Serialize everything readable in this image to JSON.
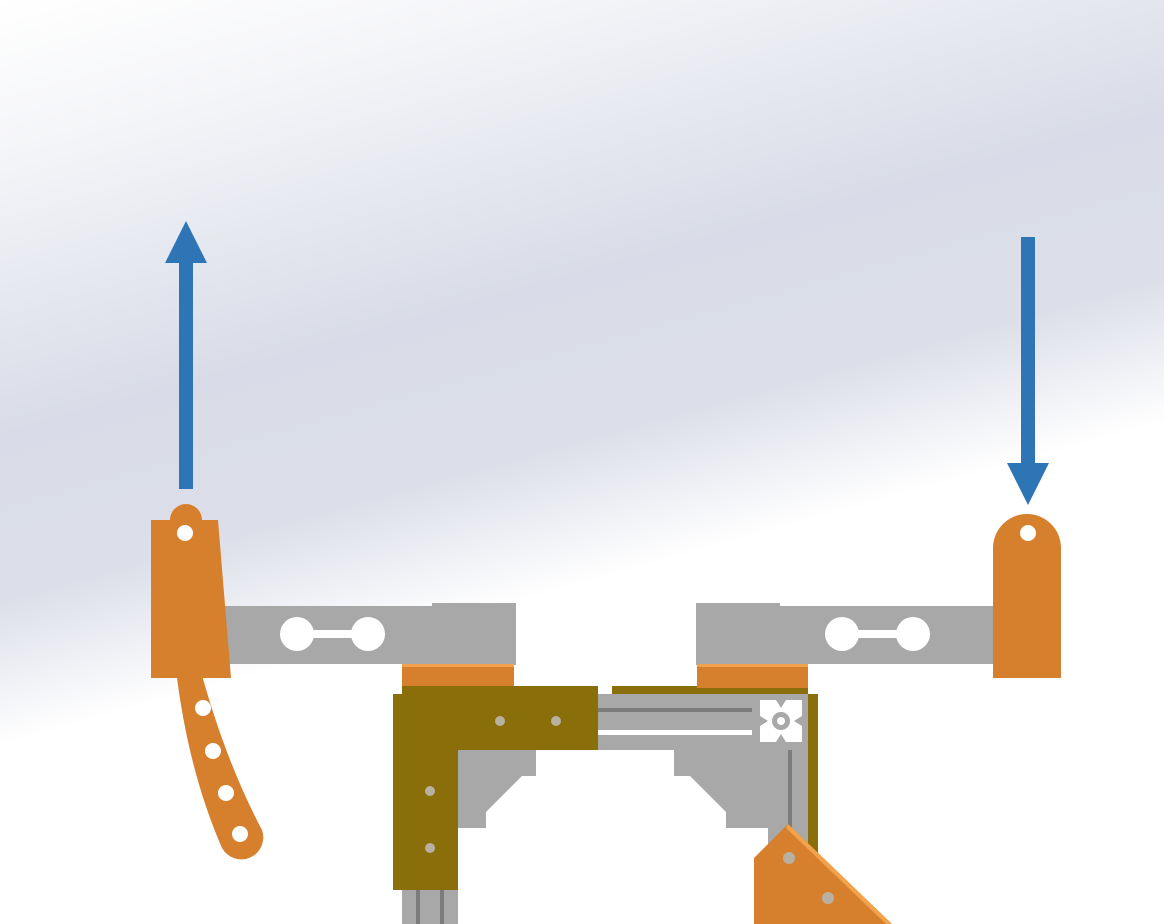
{
  "colors": {
    "background_light": "#ffffff",
    "background_mid": "#d8dce8",
    "orange": "#d6802e",
    "orange_highlight": "#f2a24a",
    "olive": "#8a6e0a",
    "gray_part": "#a8a8a8",
    "gray_dark": "#7c7c7c",
    "arrow_blue": "#2e75b6",
    "hole": "#ffffff",
    "olive_hole": "#b8b0a0"
  },
  "arrows": [
    {
      "name": "left-arrow",
      "direction": "up"
    },
    {
      "name": "right-arrow",
      "direction": "down"
    }
  ],
  "icons": [
    "up-arrow-icon",
    "down-arrow-icon",
    "extrusion-profile-icon"
  ]
}
